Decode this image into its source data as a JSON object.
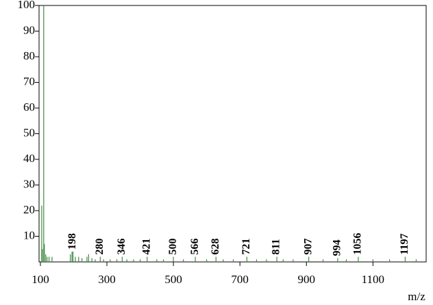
{
  "chart_data": {
    "type": "spectrum",
    "x_label": "m/z",
    "color": "#3f8a3f",
    "x": [
      104,
      106,
      110,
      112,
      116,
      120,
      126,
      135,
      190,
      195,
      205,
      215,
      225,
      240,
      245,
      255,
      265,
      290,
      310,
      330,
      360,
      380,
      400,
      450,
      470,
      530,
      600,
      650,
      680,
      750,
      780,
      830,
      860,
      950,
      1020,
      1100,
      1150,
      1230
    ],
    "values": [
      22,
      5,
      100,
      7,
      3,
      2,
      2,
      2,
      3,
      4,
      2,
      2,
      1.5,
      2,
      3,
      1.5,
      1,
      1,
      1,
      1,
      1,
      1,
      1,
      1,
      1,
      1,
      1,
      1,
      1,
      1,
      1,
      1,
      1,
      1,
      1,
      1,
      1,
      1
    ],
    "annotated_peaks": {
      "x": [
        198,
        280,
        346,
        421,
        500,
        566,
        628,
        721,
        811,
        907,
        994,
        1056,
        1197
      ],
      "values": [
        4,
        2,
        2,
        2,
        2,
        2,
        2,
        2,
        2,
        2,
        1.5,
        2,
        2
      ]
    },
    "xlim": [
      96,
      1260
    ],
    "xticks": [
      100,
      300,
      500,
      700,
      900,
      1100
    ],
    "ylim": [
      0,
      100
    ],
    "yticks": [
      10,
      20,
      30,
      40,
      50,
      60,
      70,
      80,
      90,
      100
    ]
  }
}
